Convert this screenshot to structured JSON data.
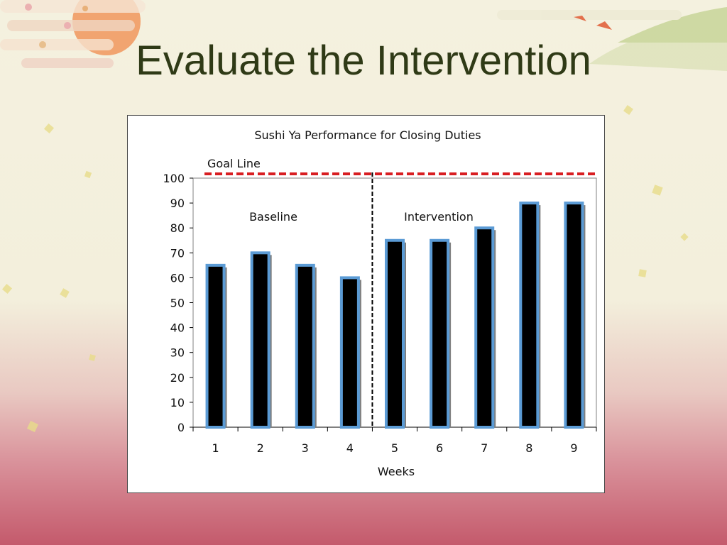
{
  "slide": {
    "title": "Evaluate the Intervention"
  },
  "chart_data": {
    "type": "bar",
    "title": "Sushi Ya Performance for Closing Duties",
    "xlabel": "Weeks",
    "ylabel": "",
    "categories": [
      "1",
      "2",
      "3",
      "4",
      "5",
      "6",
      "7",
      "8",
      "9"
    ],
    "values": [
      65,
      70,
      65,
      60,
      75,
      75,
      80,
      90,
      90
    ],
    "ylim": [
      0,
      100
    ],
    "yticks": [
      0,
      10,
      20,
      30,
      40,
      50,
      60,
      70,
      80,
      90,
      100
    ],
    "grid": false,
    "legend": "none",
    "goal": {
      "label": "Goal Line",
      "value": 100,
      "color": "#d81e22"
    },
    "phase_line_after_category": 4,
    "phases": [
      {
        "label": "Baseline"
      },
      {
        "label": "Intervention"
      }
    ],
    "colors": {
      "bar_fill": "#000000",
      "bar_border": "#5b9bd5",
      "bar_shadow": "#7f7f7f"
    }
  }
}
